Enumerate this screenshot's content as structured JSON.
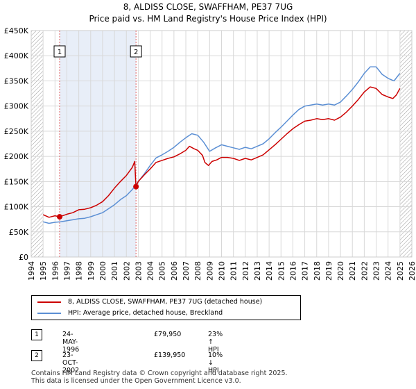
{
  "title": "8, ALDISS CLOSE, SWAFFHAM, PE37 7UG",
  "subtitle": "Price paid vs. HM Land Registry's House Price Index (HPI)",
  "colors": {
    "property": "#cc0000",
    "hpi": "#5b8fd4",
    "sale_line": "#e06060",
    "shade": "#e8eef8"
  },
  "chart_data": {
    "type": "line",
    "x_range": [
      1994,
      2026
    ],
    "ylim": [
      0,
      450000
    ],
    "y_ticks": [
      0,
      50000,
      100000,
      150000,
      200000,
      250000,
      300000,
      350000,
      400000,
      450000
    ],
    "y_tick_labels": [
      "£0",
      "£50K",
      "£100K",
      "£150K",
      "£200K",
      "£250K",
      "£300K",
      "£350K",
      "£400K",
      "£450K"
    ],
    "x_ticks": [
      "1994",
      "1995",
      "1996",
      "1997",
      "1998",
      "1999",
      "2000",
      "2001",
      "2002",
      "2003",
      "2004",
      "2005",
      "2006",
      "2007",
      "2008",
      "2009",
      "2010",
      "2011",
      "2012",
      "2013",
      "2014",
      "2015",
      "2016",
      "2017",
      "2018",
      "2019",
      "2020",
      "2021",
      "2022",
      "2023",
      "2024",
      "2025",
      "2026"
    ],
    "grid": true,
    "series": [
      {
        "name": "8, ALDISS CLOSE, SWAFFHAM, PE37 7UG (detached house)",
        "color": "#cc0000",
        "points": [
          [
            1995.0,
            84000
          ],
          [
            1995.5,
            79000
          ],
          [
            1996.0,
            82000
          ],
          [
            1996.39,
            79950
          ],
          [
            1997.0,
            85000
          ],
          [
            1997.5,
            88000
          ],
          [
            1998.0,
            94000
          ],
          [
            1998.5,
            95000
          ],
          [
            1999.0,
            98000
          ],
          [
            1999.5,
            103000
          ],
          [
            2000.0,
            110000
          ],
          [
            2000.5,
            122000
          ],
          [
            2001.0,
            137000
          ],
          [
            2001.5,
            150000
          ],
          [
            2002.0,
            162000
          ],
          [
            2002.5,
            178000
          ],
          [
            2002.7,
            190000
          ],
          [
            2002.81,
            139950
          ],
          [
            2003.0,
            150000
          ],
          [
            2003.5,
            163000
          ],
          [
            2004.0,
            175000
          ],
          [
            2004.5,
            188000
          ],
          [
            2005.0,
            192000
          ],
          [
            2005.5,
            196000
          ],
          [
            2006.0,
            199000
          ],
          [
            2006.5,
            205000
          ],
          [
            2007.0,
            212000
          ],
          [
            2007.3,
            220000
          ],
          [
            2007.7,
            215000
          ],
          [
            2008.0,
            212000
          ],
          [
            2008.4,
            202000
          ],
          [
            2008.6,
            188000
          ],
          [
            2008.9,
            182000
          ],
          [
            2009.2,
            190000
          ],
          [
            2009.6,
            193000
          ],
          [
            2010.0,
            198000
          ],
          [
            2010.5,
            198000
          ],
          [
            2011.0,
            196000
          ],
          [
            2011.5,
            192000
          ],
          [
            2012.0,
            196000
          ],
          [
            2012.5,
            193000
          ],
          [
            2013.0,
            198000
          ],
          [
            2013.5,
            203000
          ],
          [
            2014.0,
            213000
          ],
          [
            2014.5,
            223000
          ],
          [
            2015.0,
            234000
          ],
          [
            2015.5,
            245000
          ],
          [
            2016.0,
            255000
          ],
          [
            2016.5,
            263000
          ],
          [
            2017.0,
            270000
          ],
          [
            2017.5,
            272000
          ],
          [
            2018.0,
            275000
          ],
          [
            2018.5,
            273000
          ],
          [
            2019.0,
            275000
          ],
          [
            2019.5,
            272000
          ],
          [
            2020.0,
            278000
          ],
          [
            2020.5,
            288000
          ],
          [
            2021.0,
            300000
          ],
          [
            2021.5,
            313000
          ],
          [
            2022.0,
            328000
          ],
          [
            2022.5,
            338000
          ],
          [
            2023.0,
            335000
          ],
          [
            2023.5,
            323000
          ],
          [
            2024.0,
            318000
          ],
          [
            2024.4,
            315000
          ],
          [
            2024.7,
            322000
          ],
          [
            2025.0,
            335000
          ]
        ]
      },
      {
        "name": "HPI: Average price, detached house, Breckland",
        "color": "#5b8fd4",
        "points": [
          [
            1995.0,
            70000
          ],
          [
            1995.5,
            67000
          ],
          [
            1996.0,
            69000
          ],
          [
            1996.5,
            70000
          ],
          [
            1997.0,
            72000
          ],
          [
            1997.5,
            74000
          ],
          [
            1998.0,
            76000
          ],
          [
            1998.5,
            77000
          ],
          [
            1999.0,
            80000
          ],
          [
            1999.5,
            84000
          ],
          [
            2000.0,
            88000
          ],
          [
            2000.5,
            96000
          ],
          [
            2001.0,
            104000
          ],
          [
            2001.5,
            114000
          ],
          [
            2002.0,
            122000
          ],
          [
            2002.5,
            134000
          ],
          [
            2003.0,
            150000
          ],
          [
            2003.5,
            165000
          ],
          [
            2004.0,
            182000
          ],
          [
            2004.5,
            197000
          ],
          [
            2005.0,
            203000
          ],
          [
            2005.5,
            210000
          ],
          [
            2006.0,
            218000
          ],
          [
            2006.5,
            228000
          ],
          [
            2007.0,
            237000
          ],
          [
            2007.5,
            245000
          ],
          [
            2008.0,
            242000
          ],
          [
            2008.5,
            228000
          ],
          [
            2009.0,
            210000
          ],
          [
            2009.5,
            217000
          ],
          [
            2010.0,
            223000
          ],
          [
            2010.5,
            220000
          ],
          [
            2011.0,
            217000
          ],
          [
            2011.5,
            214000
          ],
          [
            2012.0,
            218000
          ],
          [
            2012.5,
            215000
          ],
          [
            2013.0,
            220000
          ],
          [
            2013.5,
            225000
          ],
          [
            2014.0,
            235000
          ],
          [
            2014.5,
            247000
          ],
          [
            2015.0,
            258000
          ],
          [
            2015.5,
            270000
          ],
          [
            2016.0,
            282000
          ],
          [
            2016.5,
            293000
          ],
          [
            2017.0,
            300000
          ],
          [
            2017.5,
            302000
          ],
          [
            2018.0,
            304000
          ],
          [
            2018.5,
            302000
          ],
          [
            2019.0,
            304000
          ],
          [
            2019.5,
            302000
          ],
          [
            2020.0,
            308000
          ],
          [
            2020.5,
            320000
          ],
          [
            2021.0,
            333000
          ],
          [
            2021.5,
            348000
          ],
          [
            2022.0,
            365000
          ],
          [
            2022.5,
            378000
          ],
          [
            2023.0,
            378000
          ],
          [
            2023.5,
            363000
          ],
          [
            2024.0,
            355000
          ],
          [
            2024.5,
            350000
          ],
          [
            2025.0,
            365000
          ]
        ]
      }
    ],
    "sales": [
      {
        "label": "1",
        "x": 1996.39,
        "price": 79950
      },
      {
        "label": "2",
        "x": 2002.81,
        "price": 139950
      }
    ],
    "hatched_before": 1995.0,
    "hatched_after": 2025.0
  },
  "legend": {
    "property_label": "8, ALDISS CLOSE, SWAFFHAM, PE37 7UG (detached house)",
    "hpi_label": "HPI: Average price, detached house, Breckland"
  },
  "sales_table": [
    {
      "marker": "1",
      "date": "24-MAY-1996",
      "price": "£79,950",
      "hpi": "23% ↑ HPI"
    },
    {
      "marker": "2",
      "date": "23-OCT-2002",
      "price": "£139,950",
      "hpi": "10% ↓ HPI"
    }
  ],
  "footer": {
    "line1": "Contains HM Land Registry data © Crown copyright and database right 2025.",
    "line2": "This data is licensed under the Open Government Licence v3.0."
  }
}
